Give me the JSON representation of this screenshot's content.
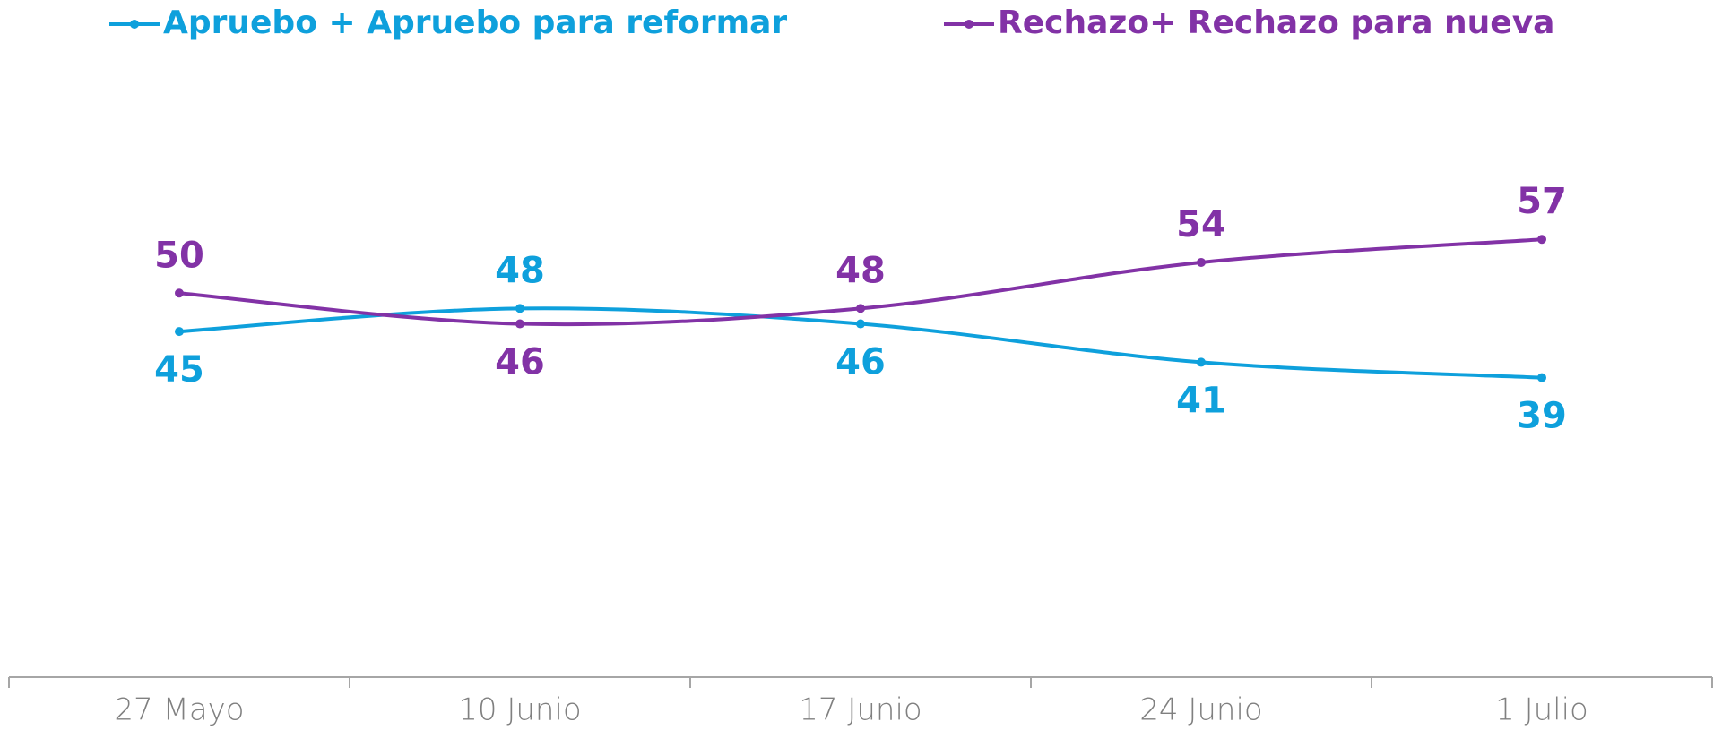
{
  "chart_data": {
    "type": "line",
    "categories": [
      "27 Mayo",
      "10 Junio",
      "17 Junio",
      "24 Junio",
      "1 Julio"
    ],
    "series": [
      {
        "name": "Apruebo + Apruebo para reformar",
        "color": "#0ea0dc",
        "values": [
          45,
          48,
          46,
          41,
          39
        ]
      },
      {
        "name": "Rechazo+ Rechazo para nueva",
        "color": "#8232a6",
        "values": [
          50,
          46,
          48,
          54,
          57
        ]
      }
    ],
    "ylim": [
      0,
      80
    ],
    "legend": "top"
  }
}
